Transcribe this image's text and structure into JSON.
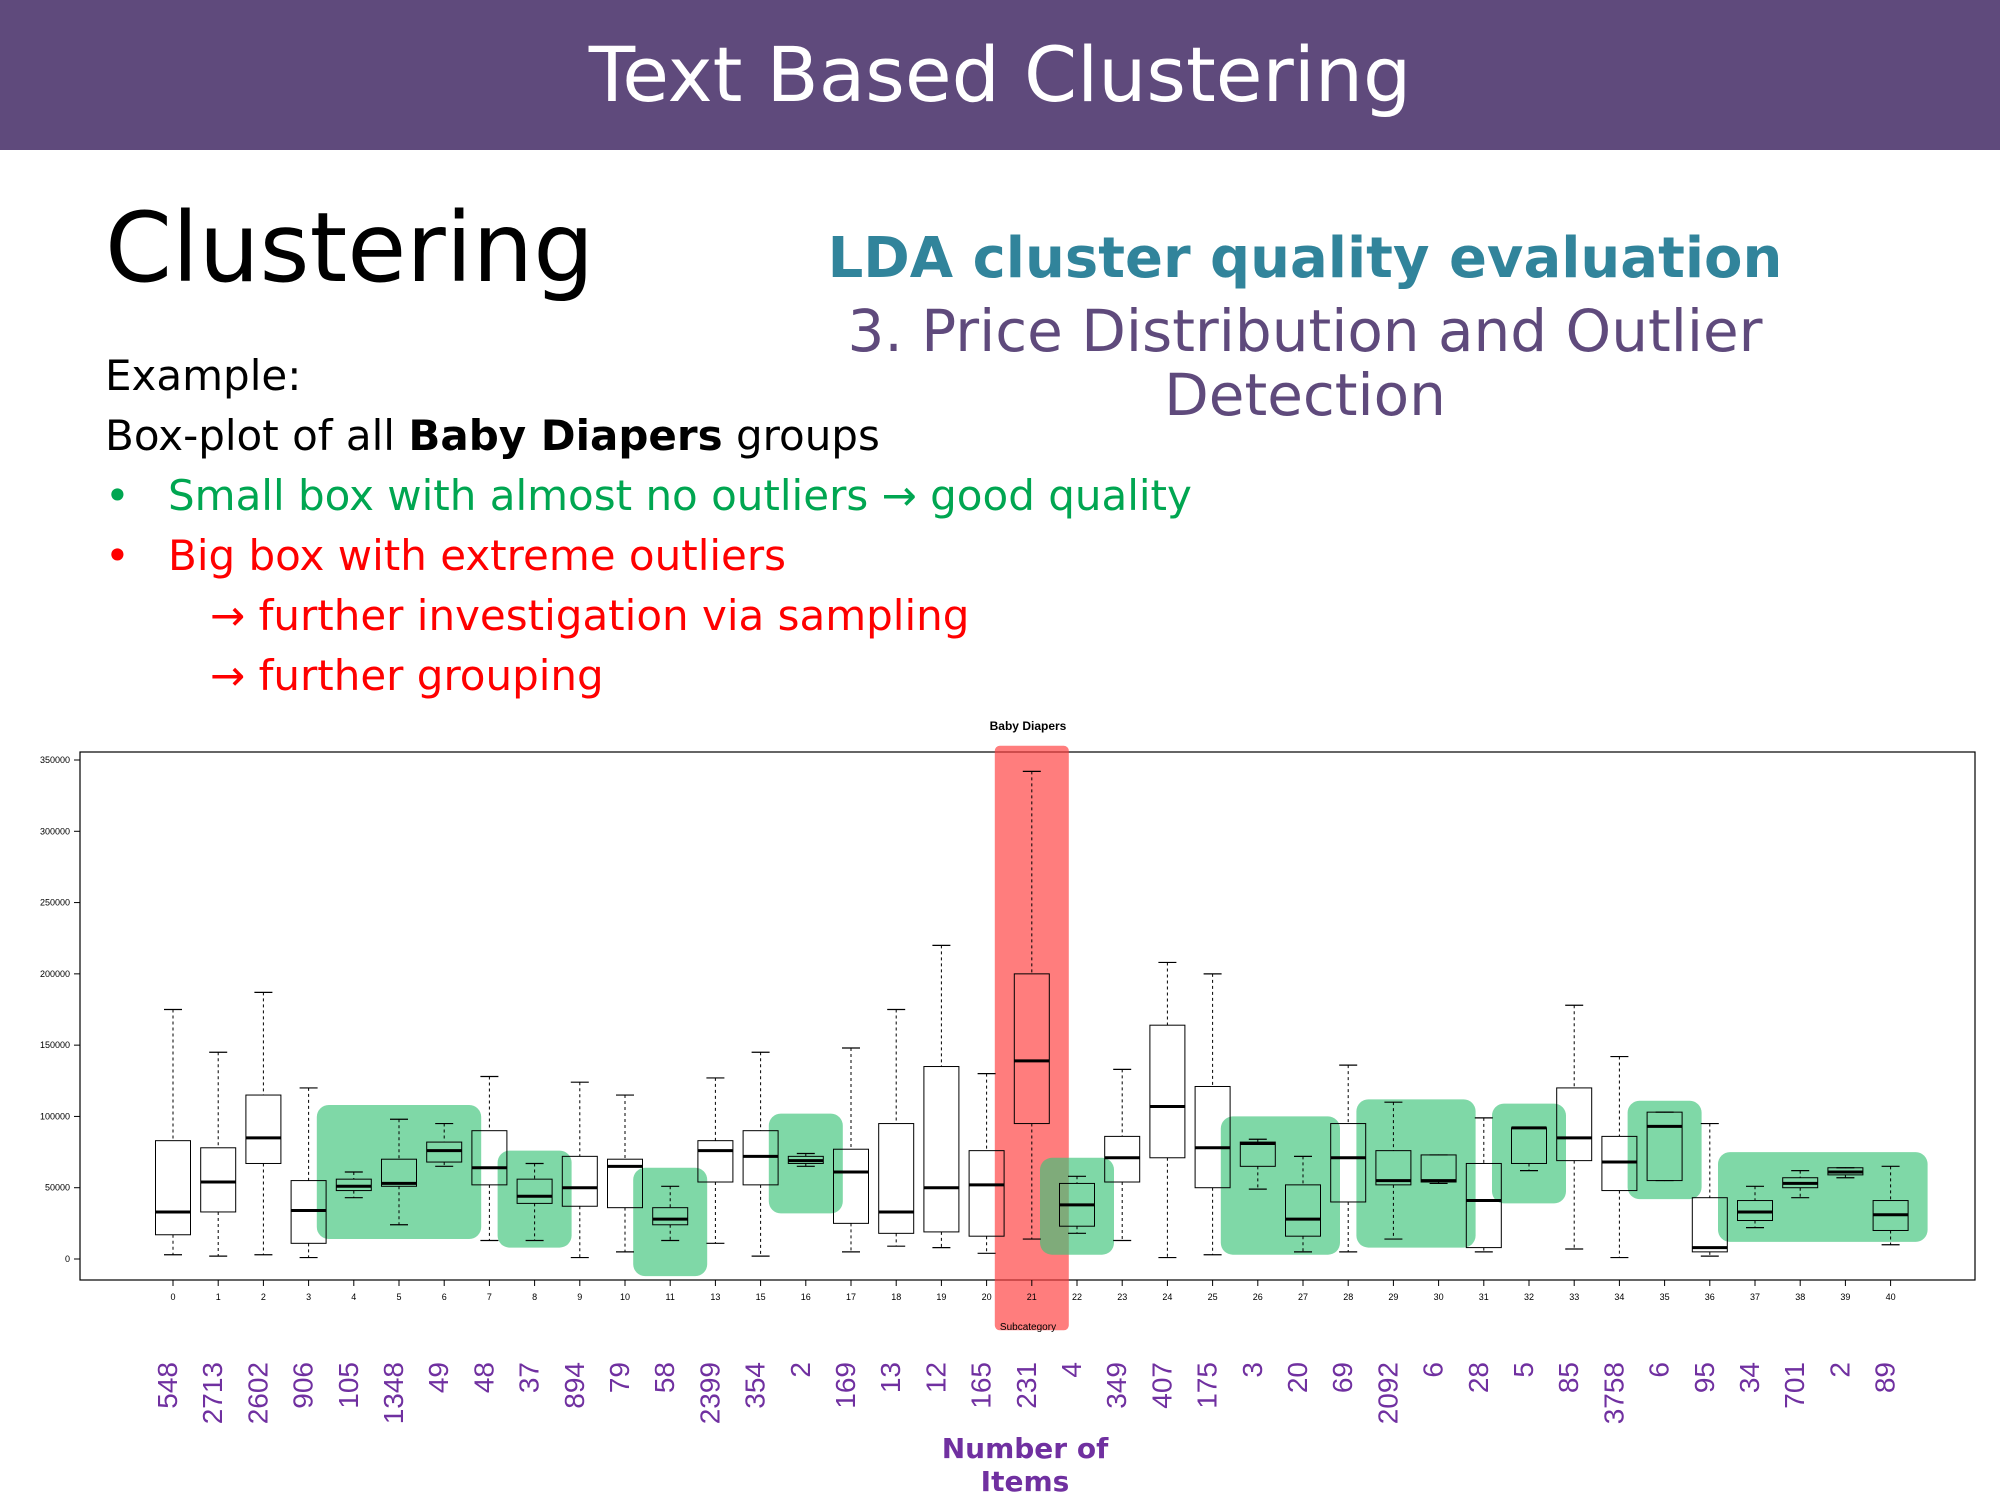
{
  "header": {
    "title": "Text Based Clustering"
  },
  "slide": {
    "heading": "Clustering",
    "subtitle_bold": "LDA cluster quality evaluation",
    "subtitle": "3. Price Distribution and Outlier Detection",
    "example_label": "Example:",
    "boxplot_prefix": "Box-plot of all ",
    "boxplot_bold": "Baby Diapers",
    "boxplot_suffix": " groups",
    "bullet_green_text": "Small box with almost no outliers",
    "bullet_green_result": "good quality",
    "bullet_red_text": "Big box with extreme outliers",
    "sub_red_1": "further investigation via sampling",
    "sub_red_2": "further grouping",
    "bullet_symbol": "•",
    "arrow_symbol": "→"
  },
  "chart_data": {
    "type": "box",
    "title": "Baby Diapers",
    "xlabel": "Subcategory",
    "ylabel": "",
    "ylim": [
      0,
      350000
    ],
    "yticks": [
      0,
      50000,
      100000,
      150000,
      200000,
      250000,
      300000,
      350000
    ],
    "categories": [
      "0",
      "1",
      "2",
      "3",
      "4",
      "5",
      "6",
      "7",
      "8",
      "9",
      "10",
      "11",
      "13",
      "15",
      "16",
      "17",
      "18",
      "19",
      "20",
      "21",
      "22",
      "23",
      "24",
      "25",
      "26",
      "27",
      "28",
      "29",
      "30",
      "31",
      "32",
      "33",
      "34",
      "35",
      "36",
      "37",
      "38",
      "39",
      "40"
    ],
    "boxes": [
      {
        "min": 3000,
        "q1": 17000,
        "median": 33000,
        "q3": 83000,
        "max": 175000
      },
      {
        "min": 2000,
        "q1": 33000,
        "median": 54000,
        "q3": 78000,
        "max": 145000
      },
      {
        "min": 3000,
        "q1": 67000,
        "median": 85000,
        "q3": 115000,
        "max": 187000
      },
      {
        "min": 1000,
        "q1": 11000,
        "median": 34000,
        "q3": 55000,
        "max": 120000
      },
      {
        "min": 43000,
        "q1": 48000,
        "median": 51000,
        "q3": 56000,
        "max": 61000
      },
      {
        "min": 24000,
        "q1": 51000,
        "median": 53000,
        "q3": 70000,
        "max": 98000
      },
      {
        "min": 65000,
        "q1": 68000,
        "median": 76000,
        "q3": 82000,
        "max": 95000
      },
      {
        "min": 13000,
        "q1": 52000,
        "median": 64000,
        "q3": 90000,
        "max": 128000
      },
      {
        "min": 13000,
        "q1": 39000,
        "median": 44000,
        "q3": 56000,
        "max": 67000
      },
      {
        "min": 1000,
        "q1": 37000,
        "median": 50000,
        "q3": 72000,
        "max": 124000
      },
      {
        "min": 5000,
        "q1": 36000,
        "median": 65000,
        "q3": 70000,
        "max": 115000
      },
      {
        "min": 13000,
        "q1": 24000,
        "median": 28000,
        "q3": 36000,
        "max": 51000
      },
      {
        "min": 11000,
        "q1": 54000,
        "median": 76000,
        "q3": 83000,
        "max": 127000
      },
      {
        "min": 2000,
        "q1": 52000,
        "median": 72000,
        "q3": 90000,
        "max": 145000
      },
      {
        "min": 65000,
        "q1": 67000,
        "median": 69000,
        "q3": 72000,
        "max": 74000
      },
      {
        "min": 5000,
        "q1": 25000,
        "median": 61000,
        "q3": 77000,
        "max": 148000
      },
      {
        "min": 9000,
        "q1": 18000,
        "median": 33000,
        "q3": 95000,
        "max": 175000
      },
      {
        "min": 8000,
        "q1": 19000,
        "median": 50000,
        "q3": 135000,
        "max": 220000
      },
      {
        "min": 4000,
        "q1": 16000,
        "median": 52000,
        "q3": 76000,
        "max": 130000
      },
      {
        "min": 14000,
        "q1": 95000,
        "median": 139000,
        "q3": 200000,
        "max": 342000
      },
      {
        "min": 18000,
        "q1": 23000,
        "median": 38000,
        "q3": 53000,
        "max": 58000
      },
      {
        "min": 13000,
        "q1": 54000,
        "median": 71000,
        "q3": 86000,
        "max": 133000
      },
      {
        "min": 1000,
        "q1": 71000,
        "median": 107000,
        "q3": 164000,
        "max": 208000
      },
      {
        "min": 3000,
        "q1": 50000,
        "median": 78000,
        "q3": 121000,
        "max": 200000
      },
      {
        "min": 49000,
        "q1": 65000,
        "median": 81000,
        "q3": 82000,
        "max": 84000
      },
      {
        "min": 5000,
        "q1": 16000,
        "median": 28000,
        "q3": 52000,
        "max": 72000
      },
      {
        "min": 5000,
        "q1": 40000,
        "median": 71000,
        "q3": 95000,
        "max": 136000
      },
      {
        "min": 14000,
        "q1": 52000,
        "median": 55000,
        "q3": 76000,
        "max": 110000
      },
      {
        "min": 53000,
        "q1": 54000,
        "median": 55000,
        "q3": 73000,
        "max": 73000
      },
      {
        "min": 5000,
        "q1": 8000,
        "median": 41000,
        "q3": 67000,
        "max": 99000
      },
      {
        "min": 62000,
        "q1": 67000,
        "median": 92000,
        "q3": 92000,
        "max": 92000
      },
      {
        "min": 7000,
        "q1": 69000,
        "median": 85000,
        "q3": 120000,
        "max": 178000
      },
      {
        "min": 1000,
        "q1": 48000,
        "median": 68000,
        "q3": 86000,
        "max": 142000
      },
      {
        "min": 55000,
        "q1": 55000,
        "median": 93000,
        "q3": 103000,
        "max": 103000
      },
      {
        "min": 2000,
        "q1": 5000,
        "median": 8000,
        "q3": 43000,
        "max": 95000
      },
      {
        "min": 22000,
        "q1": 27000,
        "median": 33000,
        "q3": 41000,
        "max": 51000
      },
      {
        "min": 43000,
        "q1": 50000,
        "median": 53000,
        "q3": 57000,
        "max": 62000
      },
      {
        "min": 57000,
        "q1": 59000,
        "median": 61000,
        "q3": 64000,
        "max": 64000
      },
      {
        "min": 10000,
        "q1": 20000,
        "median": 31000,
        "q3": 41000,
        "max": 65000
      }
    ],
    "item_counts": [
      "548",
      "2713",
      "2602",
      "906",
      "105",
      "1348",
      "49",
      "48",
      "37",
      "894",
      "79",
      "58",
      "2399",
      "354",
      "2",
      "169",
      "13",
      "12",
      "165",
      "231",
      "4",
      "349",
      "407",
      "175",
      "3",
      "20",
      "69",
      "2092",
      "6",
      "28",
      "5",
      "85",
      "3758",
      "6",
      "95",
      "34",
      "701",
      "2",
      "89"
    ],
    "item_counts_label": "Number of Items",
    "highlights": [
      {
        "quality": "good",
        "from": 4,
        "to": 6,
        "top": 108000,
        "bottom": 14000
      },
      {
        "quality": "good",
        "from": 8,
        "to": 8,
        "top": 76000,
        "bottom": 8000
      },
      {
        "quality": "good",
        "from": 11,
        "to": 11,
        "top": 64000,
        "bottom": -12000
      },
      {
        "quality": "good",
        "from": 14,
        "to": 14,
        "top": 102000,
        "bottom": 32000
      },
      {
        "quality": "bad",
        "from": 19,
        "to": 19,
        "top": 360000,
        "bottom": -50000
      },
      {
        "quality": "good",
        "from": 20,
        "to": 20,
        "top": 71000,
        "bottom": 3000
      },
      {
        "quality": "good",
        "from": 24,
        "to": 25,
        "top": 100000,
        "bottom": 3000
      },
      {
        "quality": "good",
        "from": 27,
        "to": 28,
        "top": 112000,
        "bottom": 8000
      },
      {
        "quality": "good",
        "from": 30,
        "to": 30,
        "top": 109000,
        "bottom": 39000
      },
      {
        "quality": "good",
        "from": 33,
        "to": 33,
        "top": 111000,
        "bottom": 42000
      },
      {
        "quality": "good",
        "from": 35,
        "to": 38,
        "top": 75000,
        "bottom": 12000
      }
    ],
    "colors": {
      "good": "#3cc47a",
      "bad": "#ff4040",
      "counts": "#7030a0"
    }
  }
}
